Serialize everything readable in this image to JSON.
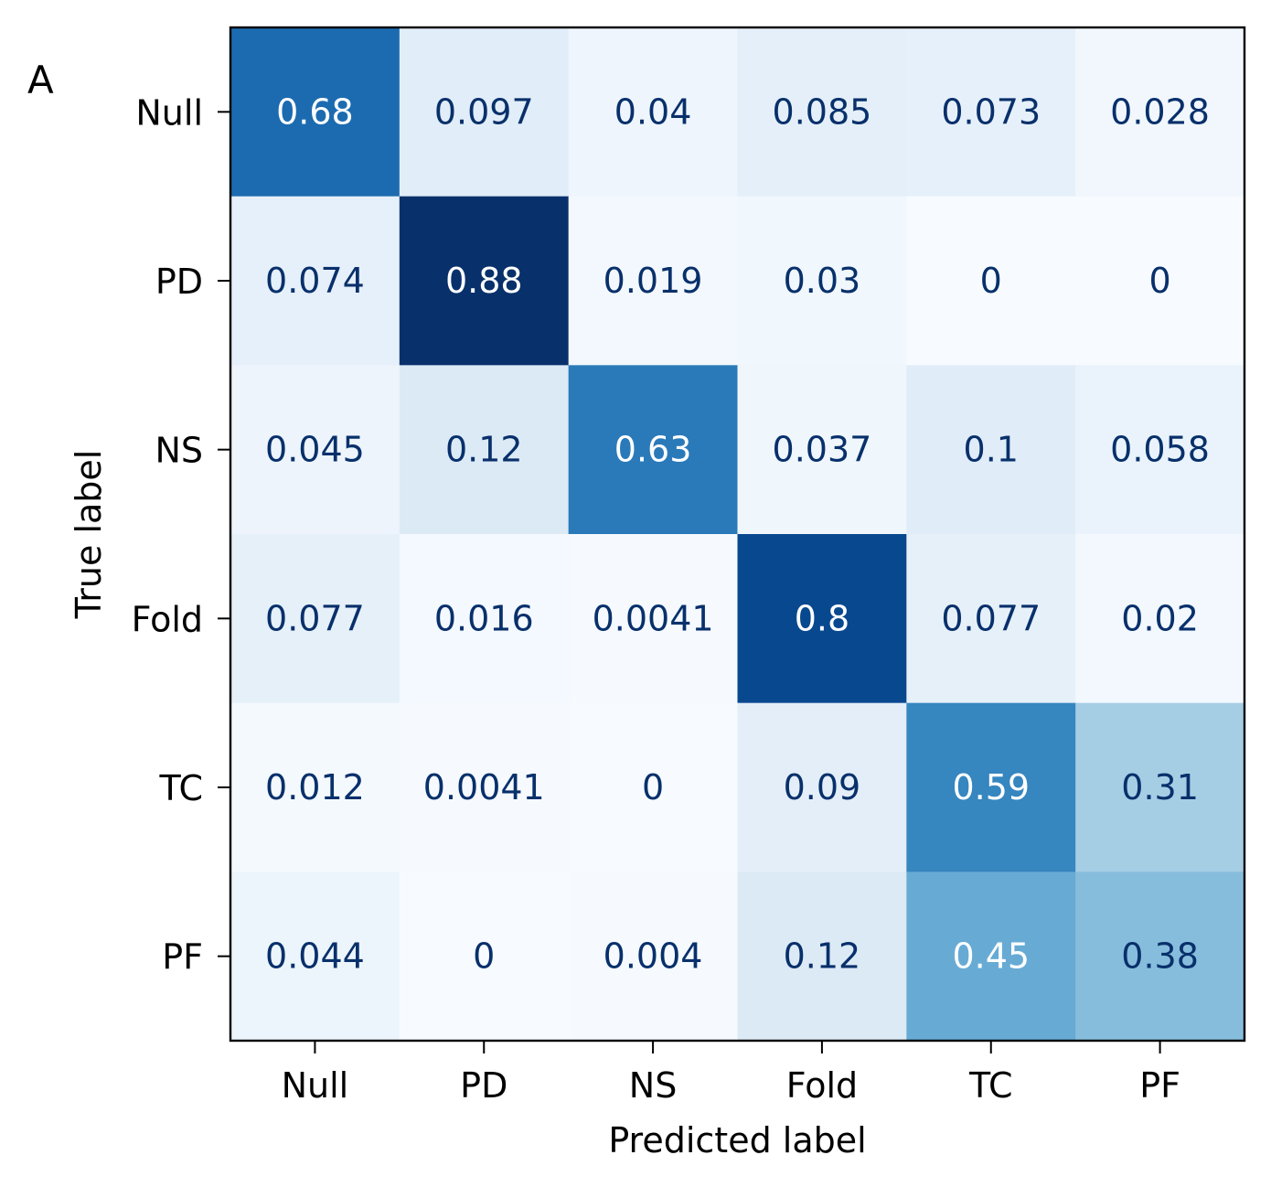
{
  "panel_letter": "A",
  "chart_data": {
    "type": "heatmap",
    "title": "",
    "xlabel": "Predicted label",
    "ylabel": "True label",
    "x_categories": [
      "Null",
      "PD",
      "NS",
      "Fold",
      "TC",
      "PF"
    ],
    "y_categories": [
      "Null",
      "PD",
      "NS",
      "Fold",
      "TC",
      "PF"
    ],
    "values": [
      [
        0.68,
        0.097,
        0.04,
        0.085,
        0.073,
        0.028
      ],
      [
        0.074,
        0.88,
        0.019,
        0.03,
        0,
        0
      ],
      [
        0.045,
        0.12,
        0.63,
        0.037,
        0.1,
        0.058
      ],
      [
        0.077,
        0.016,
        0.0041,
        0.8,
        0.077,
        0.02
      ],
      [
        0.012,
        0.0041,
        0,
        0.09,
        0.59,
        0.31
      ],
      [
        0.044,
        0,
        0.004,
        0.12,
        0.45,
        0.38
      ]
    ],
    "value_labels": [
      [
        "0.68",
        "0.097",
        "0.04",
        "0.085",
        "0.073",
        "0.028"
      ],
      [
        "0.074",
        "0.88",
        "0.019",
        "0.03",
        "0",
        "0"
      ],
      [
        "0.045",
        "0.12",
        "0.63",
        "0.037",
        "0.1",
        "0.058"
      ],
      [
        "0.077",
        "0.016",
        "0.0041",
        "0.8",
        "0.077",
        "0.02"
      ],
      [
        "0.012",
        "0.0041",
        "0",
        "0.09",
        "0.59",
        "0.31"
      ],
      [
        "0.044",
        "0",
        "0.004",
        "0.12",
        "0.45",
        "0.38"
      ]
    ],
    "colormap": "Blues",
    "color_range": [
      0,
      0.88
    ],
    "colormap_stops": [
      "#f7fbff",
      "#deebf7",
      "#c6dbef",
      "#9ecae1",
      "#6baed6",
      "#4292c6",
      "#2171b5",
      "#08519c",
      "#08306b"
    ],
    "text_color_dark": "#08306b",
    "text_color_light": "#ffffff",
    "grid": false,
    "legend": "none"
  }
}
